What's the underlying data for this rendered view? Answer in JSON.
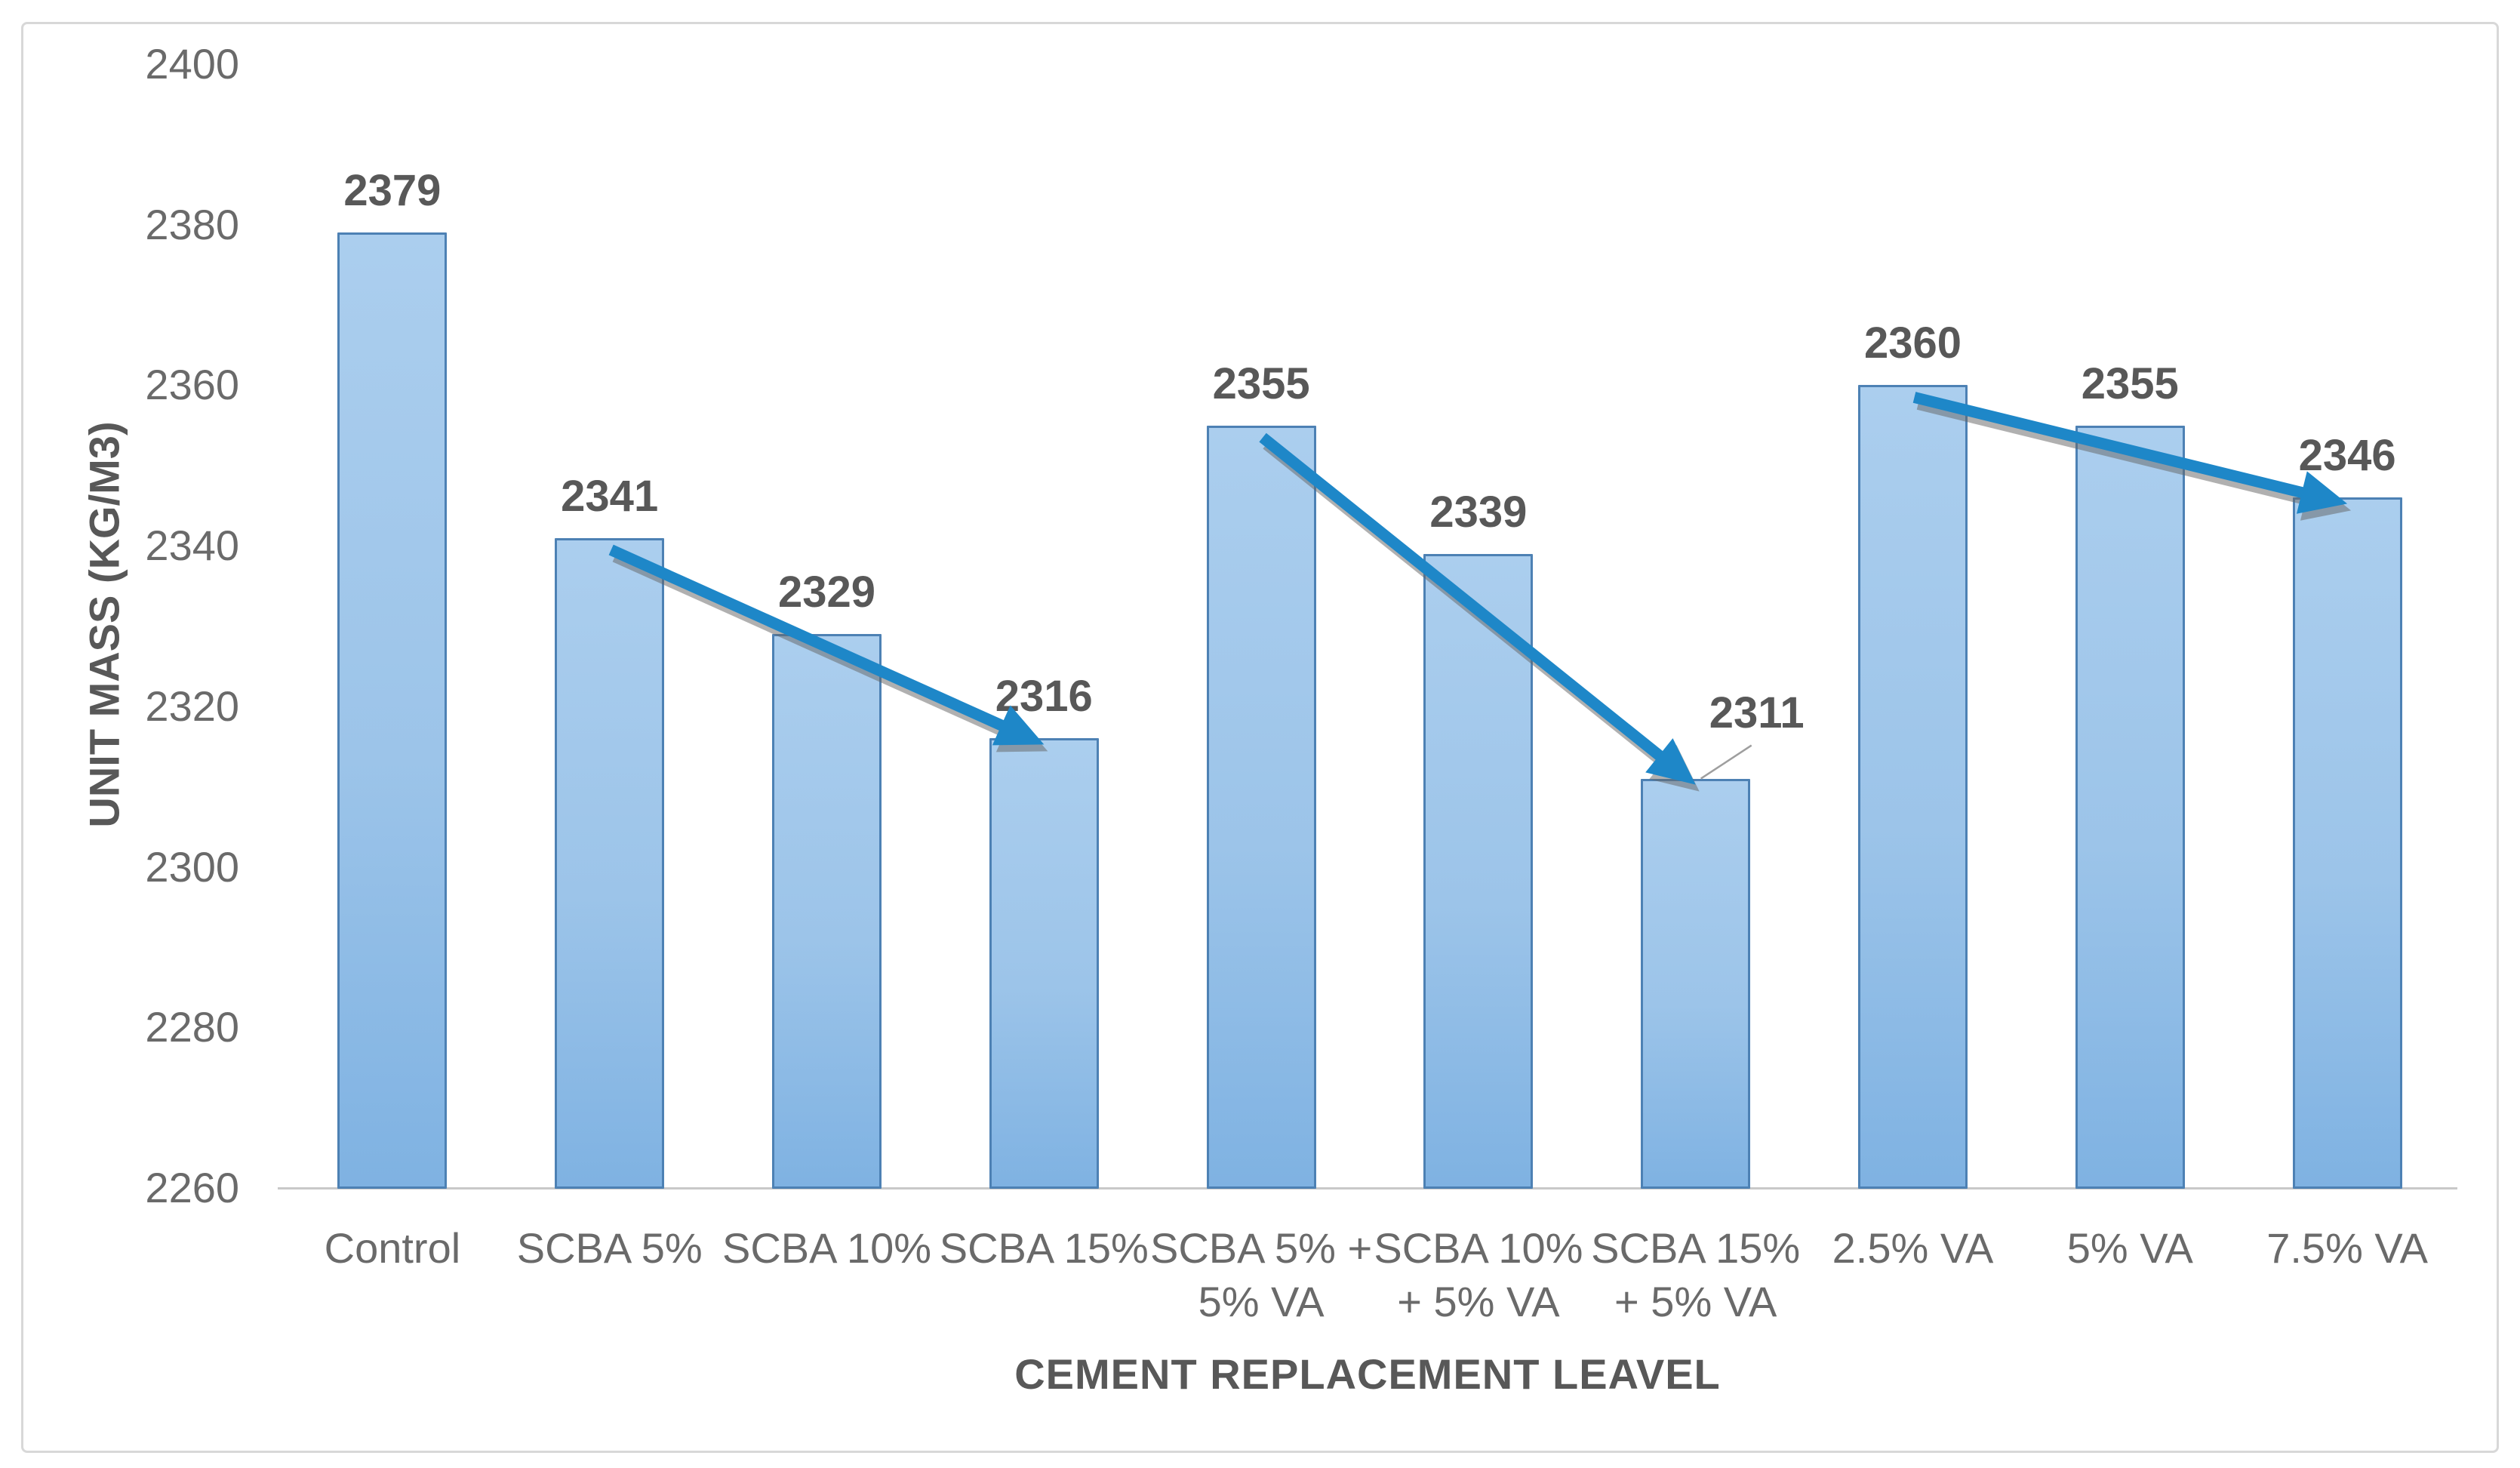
{
  "chart_data": {
    "type": "bar",
    "title": "",
    "xlabel": "CEMENT REPLACEMENT LEAVEL",
    "ylabel": "UNIT MASS (KG/M3)",
    "ylim": [
      2260,
      2400
    ],
    "ytick_step": 20,
    "ytick_labels": [
      "2260",
      "2280",
      "2300",
      "2320",
      "2340",
      "2360",
      "2380",
      "2400"
    ],
    "grid": false,
    "legend": "none",
    "categories": [
      "Control",
      "SCBA 5%",
      "SCBA 10%",
      "SCBA 15%",
      "SCBA 5% +\n5% VA",
      "SCBA 10%\n+ 5% VA",
      "SCBA 15%\n+ 5% VA",
      "2.5% VA",
      "5% VA",
      "7.5% VA"
    ],
    "values": [
      2379,
      2341,
      2329,
      2316,
      2355,
      2339,
      2311,
      2360,
      2355,
      2346
    ],
    "data_labels": [
      "2379",
      "2341",
      "2329",
      "2316",
      "2355",
      "2339",
      "2311",
      "2360",
      "2355",
      "2346"
    ],
    "trend_arrows": [
      {
        "from_index": 1,
        "to_index": 3
      },
      {
        "from_index": 4,
        "to_index": 6
      },
      {
        "from_index": 7,
        "to_index": 9
      }
    ],
    "callout": {
      "index": 6,
      "has_leader_line": true
    },
    "colors": {
      "bar_fill_top": "#abceee",
      "bar_fill_bottom": "#7fb2e2",
      "bar_border": "#4d81b4",
      "arrow": "#1e87c8",
      "arrow_shadow": "#646464",
      "axis_line": "#c9c9c9",
      "leader_line": "#9e9e9e",
      "tick_text": "#6a6a6a",
      "label_text": "#585858",
      "frame_border": "#d8d8d8",
      "background": "#ffffff"
    }
  }
}
